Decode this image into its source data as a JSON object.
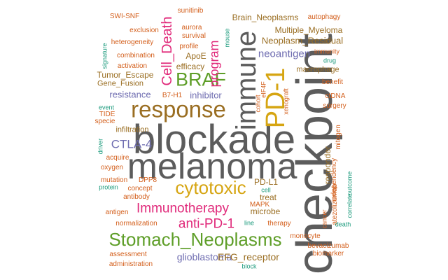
{
  "palette": {
    "orange": "#D35F1C",
    "purple": "#6E6CB0",
    "teal": "#1B9A7C",
    "pink": "#E0297A",
    "olive": "#5E9E28",
    "gold": "#D6A512",
    "brown": "#9A6E22",
    "gray": "#5C5C5C"
  },
  "words": [
    {
      "text": "checkpoint",
      "color": "gray",
      "rotated": true
    },
    {
      "text": "blockade",
      "color": "gray",
      "rotated": false
    },
    {
      "text": "melanoma",
      "color": "gray",
      "rotated": false
    },
    {
      "text": "immune",
      "color": "gray",
      "rotated": true
    },
    {
      "text": "response",
      "color": "brown",
      "rotated": false
    },
    {
      "text": "PD-1",
      "color": "gold",
      "rotated": true
    },
    {
      "text": "Stomach_Neoplasms",
      "color": "olive",
      "rotated": false
    },
    {
      "text": "cytotoxic",
      "color": "gold",
      "rotated": false
    },
    {
      "text": "BRAF",
      "color": "olive",
      "rotated": false
    },
    {
      "text": "Cell_Death",
      "color": "pink",
      "rotated": true
    },
    {
      "text": "Immunotherapy",
      "color": "pink",
      "rotated": false
    },
    {
      "text": "anti-PD-1",
      "color": "pink",
      "rotated": false
    },
    {
      "text": "program",
      "color": "pink",
      "rotated": true
    },
    {
      "text": "CTLA-4",
      "color": "purple",
      "rotated": false
    },
    {
      "text": "neoantigen",
      "color": "purple",
      "rotated": false
    },
    {
      "text": "glioblastoma",
      "color": "purple",
      "rotated": false
    },
    {
      "text": "EFG_receptor",
      "color": "brown",
      "rotated": false
    },
    {
      "text": "Neoplasm_Residual",
      "color": "brown",
      "rotated": false
    },
    {
      "text": "Brain_Neoplasms",
      "color": "brown",
      "rotated": false
    },
    {
      "text": "Multiple_Myeloma",
      "color": "brown",
      "rotated": false
    },
    {
      "text": "resistance",
      "color": "purple",
      "rotated": false
    },
    {
      "text": "inhibitor",
      "color": "purple",
      "rotated": false
    },
    {
      "text": "efficacy",
      "color": "brown",
      "rotated": false
    },
    {
      "text": "ApoE",
      "color": "brown",
      "rotated": false
    },
    {
      "text": "Tumor_Escape",
      "color": "brown",
      "rotated": false
    },
    {
      "text": "Gene_Fusion",
      "color": "brown",
      "rotated": false
    },
    {
      "text": "infiltration",
      "color": "brown",
      "rotated": false
    },
    {
      "text": "microbe",
      "color": "brown",
      "rotated": false
    },
    {
      "text": "treat",
      "color": "brown",
      "rotated": false
    },
    {
      "text": "PD-L1",
      "color": "brown",
      "rotated": false
    },
    {
      "text": "responder",
      "color": "brown",
      "rotated": true
    },
    {
      "text": "macrophage",
      "color": "brown",
      "rotated": false
    },
    {
      "text": "SWI-SNF",
      "color": "orange",
      "rotated": false
    },
    {
      "text": "sunitinib",
      "color": "orange",
      "rotated": false
    },
    {
      "text": "aurora",
      "color": "orange",
      "rotated": false
    },
    {
      "text": "survival",
      "color": "orange",
      "rotated": false
    },
    {
      "text": "profile",
      "color": "orange",
      "rotated": false
    },
    {
      "text": "autophagy",
      "color": "orange",
      "rotated": false
    },
    {
      "text": "exclusion",
      "color": "orange",
      "rotated": false
    },
    {
      "text": "heterogeneity",
      "color": "orange",
      "rotated": false
    },
    {
      "text": "combination",
      "color": "orange",
      "rotated": false
    },
    {
      "text": "activation",
      "color": "orange",
      "rotated": false
    },
    {
      "text": "signature",
      "color": "teal",
      "rotated": true
    },
    {
      "text": "mouse",
      "color": "teal",
      "rotated": true
    },
    {
      "text": "immunity",
      "color": "orange",
      "rotated": false
    },
    {
      "text": "drug",
      "color": "teal",
      "rotated": false
    },
    {
      "text": "benefit",
      "color": "orange",
      "rotated": false
    },
    {
      "text": "B7-H1",
      "color": "orange",
      "rotated": false
    },
    {
      "text": "cohort",
      "color": "orange",
      "rotated": true
    },
    {
      "text": "eIF4F",
      "color": "orange",
      "rotated": true
    },
    {
      "text": "xenograft",
      "color": "orange",
      "rotated": true
    },
    {
      "text": "ctDNA",
      "color": "orange",
      "rotated": false
    },
    {
      "text": "surgery",
      "color": "orange",
      "rotated": false
    },
    {
      "text": "event",
      "color": "teal",
      "rotated": false
    },
    {
      "text": "TIDE",
      "color": "orange",
      "rotated": false
    },
    {
      "text": "specie",
      "color": "orange",
      "rotated": false
    },
    {
      "text": "mitogen",
      "color": "orange",
      "rotated": true
    },
    {
      "text": "driver",
      "color": "teal",
      "rotated": true
    },
    {
      "text": "acquire",
      "color": "orange",
      "rotated": false
    },
    {
      "text": "oxygen",
      "color": "orange",
      "rotated": false
    },
    {
      "text": "independency",
      "color": "orange",
      "rotated": true
    },
    {
      "text": "outcome",
      "color": "teal",
      "rotated": true
    },
    {
      "text": "mutation",
      "color": "orange",
      "rotated": false
    },
    {
      "text": "DPP8",
      "color": "orange",
      "rotated": false
    },
    {
      "text": "protein",
      "color": "teal",
      "rotated": false
    },
    {
      "text": "concept",
      "color": "orange",
      "rotated": false
    },
    {
      "text": "cell",
      "color": "teal",
      "rotated": false
    },
    {
      "text": "antibody",
      "color": "orange",
      "rotated": false
    },
    {
      "text": "atezolizumab",
      "color": "orange",
      "rotated": true
    },
    {
      "text": "correlate",
      "color": "teal",
      "rotated": true
    },
    {
      "text": "MAPK",
      "color": "orange",
      "rotated": false
    },
    {
      "text": "cancer",
      "color": "orange",
      "rotated": true
    },
    {
      "text": "antigen",
      "color": "orange",
      "rotated": false
    },
    {
      "text": "normalization",
      "color": "orange",
      "rotated": false
    },
    {
      "text": "line",
      "color": "teal",
      "rotated": false
    },
    {
      "text": "therapy",
      "color": "orange",
      "rotated": false
    },
    {
      "text": "death",
      "color": "teal",
      "rotated": false
    },
    {
      "text": "monocyte",
      "color": "orange",
      "rotated": false
    },
    {
      "text": "bevacizumab",
      "color": "orange",
      "rotated": false
    },
    {
      "text": "biomarker",
      "color": "orange",
      "rotated": false
    },
    {
      "text": "assessment",
      "color": "orange",
      "rotated": false
    },
    {
      "text": "administration",
      "color": "orange",
      "rotated": false
    },
    {
      "text": "block",
      "color": "teal",
      "rotated": false
    }
  ]
}
